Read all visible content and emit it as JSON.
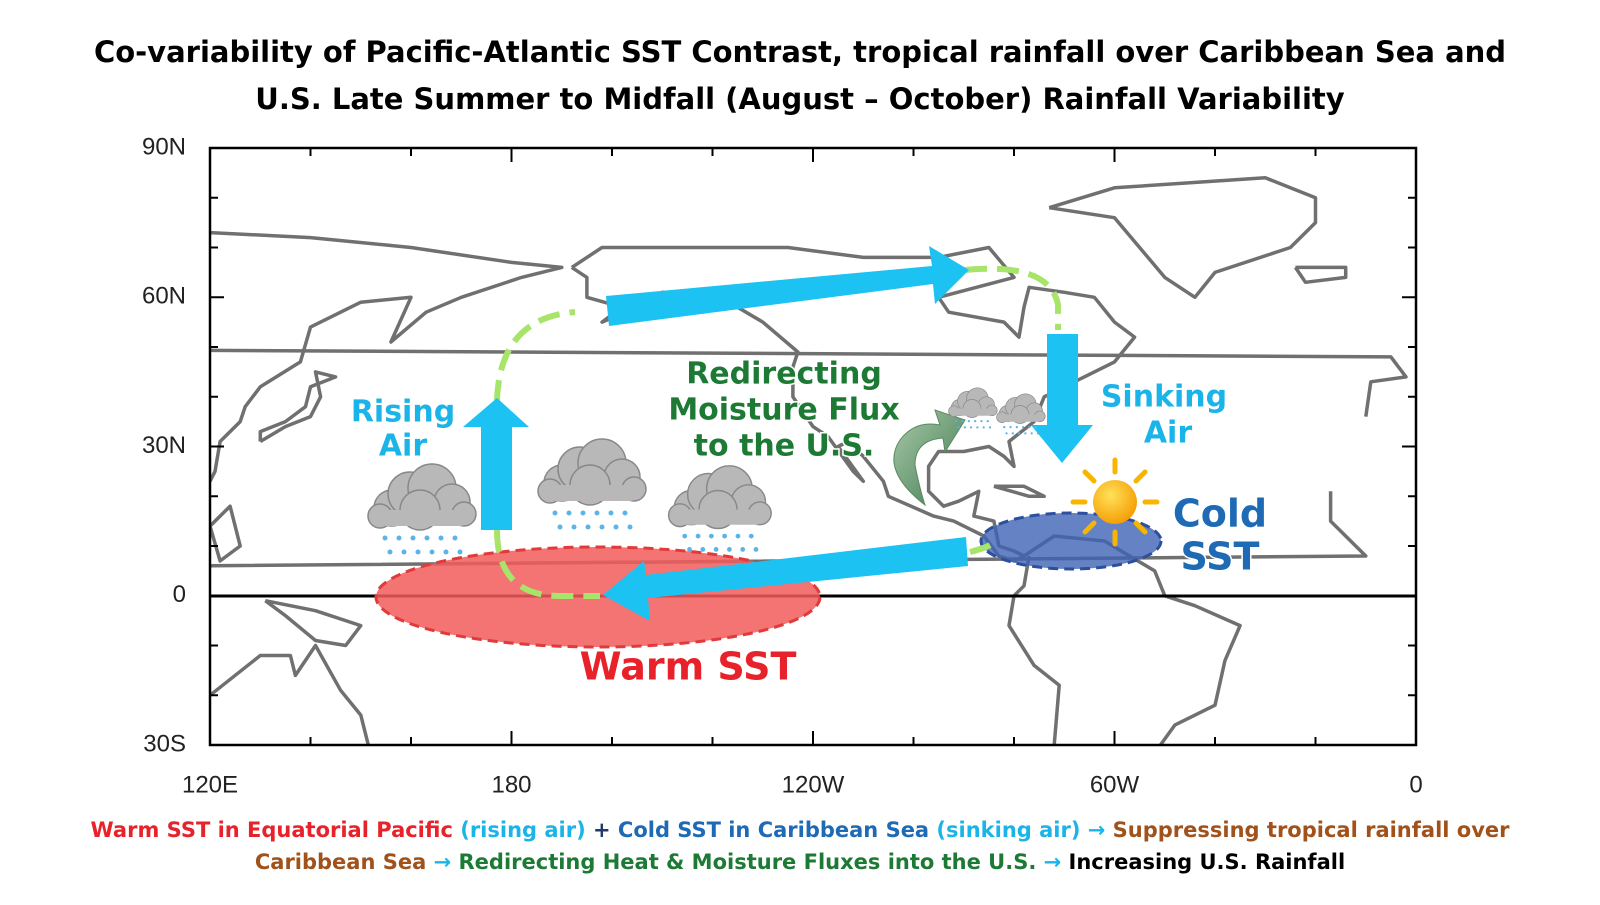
{
  "title": {
    "lines": [
      "Co-variability of Pacific-Atlantic SST Contrast, tropical rainfall over Caribbean Sea and",
      "U.S. Late Summer to Midfall (August – October) Rainfall Variability"
    ]
  },
  "axis": {
    "y_labels": [
      "90N",
      "60N",
      "30N",
      "0",
      "30S"
    ],
    "x_labels": [
      "120E",
      "180",
      "120W",
      "60W",
      "0"
    ]
  },
  "labels": {
    "rising_air": [
      "Rising",
      "Air"
    ],
    "redirecting": [
      "Redirecting",
      "Moisture Flux",
      "to the U.S."
    ],
    "sinking_air": [
      "Sinking",
      "Air"
    ],
    "cold_sst": [
      "Cold",
      "SST"
    ],
    "warm_sst": "Warm SST"
  },
  "caption": {
    "lines": [
      [
        "Warm SST in Equatorial Pacific",
        " (rising air)",
        " + ",
        "Cold SST in Caribbean Sea",
        " (sinking air)",
        " → ",
        "Suppressing tropical rainfall over"
      ],
      [
        "Caribbean Sea",
        " → ",
        "Redirecting Heat & Moisture Fluxes into the U.S.",
        " → ",
        "Increasing U.S. Rainfall"
      ]
    ]
  }
}
